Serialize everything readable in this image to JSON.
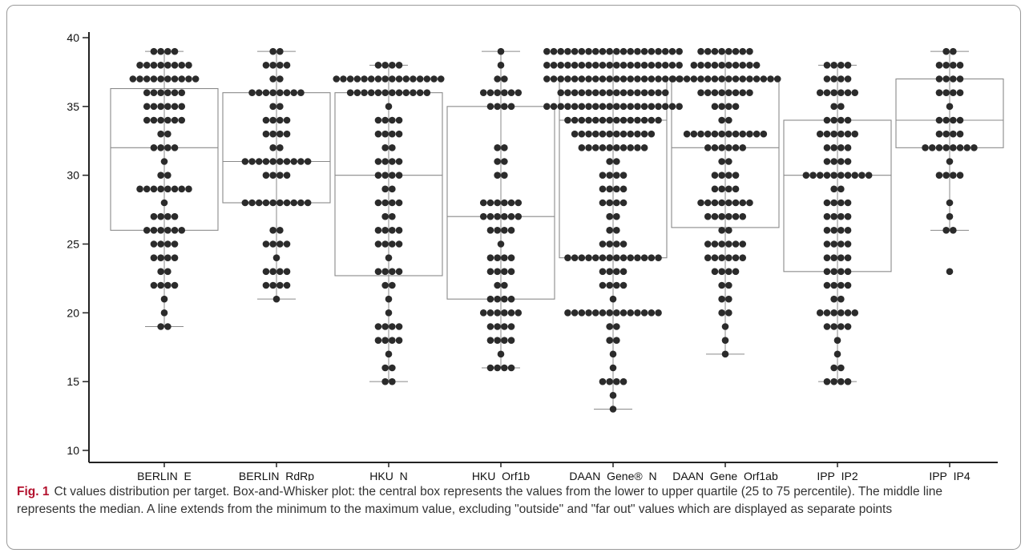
{
  "chart_data": {
    "type": "box",
    "ylim": [
      9,
      41
    ],
    "yticks": [
      10,
      15,
      20,
      25,
      30,
      35,
      40
    ],
    "grid": false,
    "categories": [
      "BERLIN_E",
      "BERLIN_RdRp",
      "HKU_N",
      "HKU_Orf1b",
      "DAAN_Gene®_N",
      "DAAN_Gene_Orf1ab",
      "IPP_IP2",
      "IPP_IP4"
    ],
    "boxes": [
      {
        "min": 19,
        "q1": 26,
        "median": 32,
        "q3": 36.3,
        "max": 39
      },
      {
        "min": 21,
        "q1": 28,
        "median": 31,
        "q3": 36,
        "max": 39
      },
      {
        "min": 15,
        "q1": 22.7,
        "median": 30,
        "q3": 36,
        "max": 38
      },
      {
        "min": 16,
        "q1": 21,
        "median": 27,
        "q3": 35,
        "max": 39
      },
      {
        "min": 13,
        "q1": 24,
        "median": 34,
        "q3": 37,
        "max": 39
      },
      {
        "min": 17,
        "q1": 26.2,
        "median": 32,
        "q3": 37,
        "max": 39
      },
      {
        "min": 15,
        "q1": 23,
        "median": 30,
        "q3": 34,
        "max": 38
      },
      {
        "min": 26,
        "q1": 32,
        "median": 34,
        "q3": 37,
        "max": 39
      }
    ],
    "points": [
      [
        [
          19,
          2
        ],
        [
          20,
          1
        ],
        [
          21,
          1
        ],
        [
          22,
          4
        ],
        [
          23,
          2
        ],
        [
          24,
          4
        ],
        [
          25,
          4
        ],
        [
          26,
          6
        ],
        [
          27,
          4
        ],
        [
          28,
          1
        ],
        [
          29,
          8
        ],
        [
          30,
          2
        ],
        [
          31,
          1
        ],
        [
          32,
          4
        ],
        [
          33,
          2
        ],
        [
          34,
          6
        ],
        [
          35,
          6
        ],
        [
          36,
          6
        ],
        [
          37,
          10
        ],
        [
          38,
          8
        ],
        [
          39,
          4
        ]
      ],
      [
        [
          21,
          1
        ],
        [
          22,
          4
        ],
        [
          23,
          4
        ],
        [
          24,
          1
        ],
        [
          25,
          4
        ],
        [
          26,
          2
        ],
        [
          28,
          10
        ],
        [
          30,
          4
        ],
        [
          31,
          10
        ],
        [
          32,
          2
        ],
        [
          33,
          4
        ],
        [
          34,
          4
        ],
        [
          35,
          2
        ],
        [
          36,
          8
        ],
        [
          37,
          2
        ],
        [
          38,
          4
        ],
        [
          39,
          2
        ]
      ],
      [
        [
          15,
          2
        ],
        [
          16,
          2
        ],
        [
          17,
          1
        ],
        [
          18,
          4
        ],
        [
          19,
          4
        ],
        [
          20,
          1
        ],
        [
          21,
          1
        ],
        [
          22,
          2
        ],
        [
          23,
          4
        ],
        [
          24,
          1
        ],
        [
          25,
          4
        ],
        [
          26,
          4
        ],
        [
          27,
          2
        ],
        [
          28,
          4
        ],
        [
          29,
          2
        ],
        [
          30,
          4
        ],
        [
          31,
          4
        ],
        [
          32,
          2
        ],
        [
          33,
          4
        ],
        [
          34,
          4
        ],
        [
          35,
          1
        ],
        [
          36,
          12
        ],
        [
          37,
          16
        ],
        [
          38,
          4
        ]
      ],
      [
        [
          16,
          4
        ],
        [
          17,
          1
        ],
        [
          18,
          4
        ],
        [
          19,
          4
        ],
        [
          20,
          6
        ],
        [
          21,
          4
        ],
        [
          22,
          2
        ],
        [
          23,
          4
        ],
        [
          24,
          4
        ],
        [
          25,
          1
        ],
        [
          26,
          4
        ],
        [
          27,
          6
        ],
        [
          28,
          6
        ],
        [
          30,
          2
        ],
        [
          31,
          2
        ],
        [
          32,
          2
        ],
        [
          35,
          4
        ],
        [
          36,
          6
        ],
        [
          37,
          2
        ],
        [
          38,
          1
        ],
        [
          39,
          1
        ]
      ],
      [
        [
          13,
          1
        ],
        [
          14,
          1
        ],
        [
          15,
          4
        ],
        [
          16,
          1
        ],
        [
          17,
          1
        ],
        [
          18,
          2
        ],
        [
          19,
          2
        ],
        [
          20,
          14
        ],
        [
          21,
          1
        ],
        [
          22,
          4
        ],
        [
          23,
          4
        ],
        [
          24,
          14
        ],
        [
          25,
          4
        ],
        [
          26,
          2
        ],
        [
          27,
          2
        ],
        [
          28,
          4
        ],
        [
          29,
          4
        ],
        [
          30,
          4
        ],
        [
          31,
          2
        ],
        [
          32,
          10
        ],
        [
          33,
          12
        ],
        [
          34,
          14
        ],
        [
          35,
          20
        ],
        [
          36,
          16
        ],
        [
          37,
          20
        ],
        [
          38,
          20
        ],
        [
          39,
          20
        ]
      ],
      [
        [
          17,
          1
        ],
        [
          18,
          1
        ],
        [
          19,
          1
        ],
        [
          20,
          2
        ],
        [
          21,
          2
        ],
        [
          22,
          2
        ],
        [
          23,
          4
        ],
        [
          24,
          6
        ],
        [
          25,
          6
        ],
        [
          26,
          2
        ],
        [
          27,
          6
        ],
        [
          28,
          8
        ],
        [
          29,
          4
        ],
        [
          30,
          4
        ],
        [
          31,
          2
        ],
        [
          32,
          6
        ],
        [
          33,
          12
        ],
        [
          34,
          2
        ],
        [
          35,
          4
        ],
        [
          36,
          8
        ],
        [
          37,
          16
        ],
        [
          38,
          10
        ],
        [
          39,
          8
        ]
      ],
      [
        [
          15,
          4
        ],
        [
          16,
          2
        ],
        [
          17,
          1
        ],
        [
          18,
          1
        ],
        [
          19,
          4
        ],
        [
          20,
          6
        ],
        [
          21,
          2
        ],
        [
          22,
          4
        ],
        [
          23,
          4
        ],
        [
          24,
          4
        ],
        [
          25,
          4
        ],
        [
          26,
          4
        ],
        [
          27,
          4
        ],
        [
          28,
          4
        ],
        [
          29,
          2
        ],
        [
          30,
          10
        ],
        [
          31,
          4
        ],
        [
          32,
          4
        ],
        [
          33,
          6
        ],
        [
          34,
          4
        ],
        [
          35,
          2
        ],
        [
          36,
          6
        ],
        [
          37,
          4
        ],
        [
          38,
          4
        ]
      ],
      [
        [
          23,
          1
        ],
        [
          26,
          2
        ],
        [
          27,
          1
        ],
        [
          28,
          1
        ],
        [
          30,
          4
        ],
        [
          31,
          1
        ],
        [
          32,
          8
        ],
        [
          33,
          4
        ],
        [
          34,
          4
        ],
        [
          35,
          1
        ],
        [
          36,
          4
        ],
        [
          37,
          4
        ],
        [
          38,
          4
        ],
        [
          39,
          2
        ]
      ]
    ]
  },
  "caption": {
    "label": "Fig. 1",
    "text": "Ct values distribution per target. Box-and-Whisker plot: the central box represents the values from the lower to upper quartile (25 to 75 percentile). The middle line represents the median. A line extends from the minimum to the maximum value, excluding \"outside\" and \"far out\" values which are displayed as separate points"
  }
}
